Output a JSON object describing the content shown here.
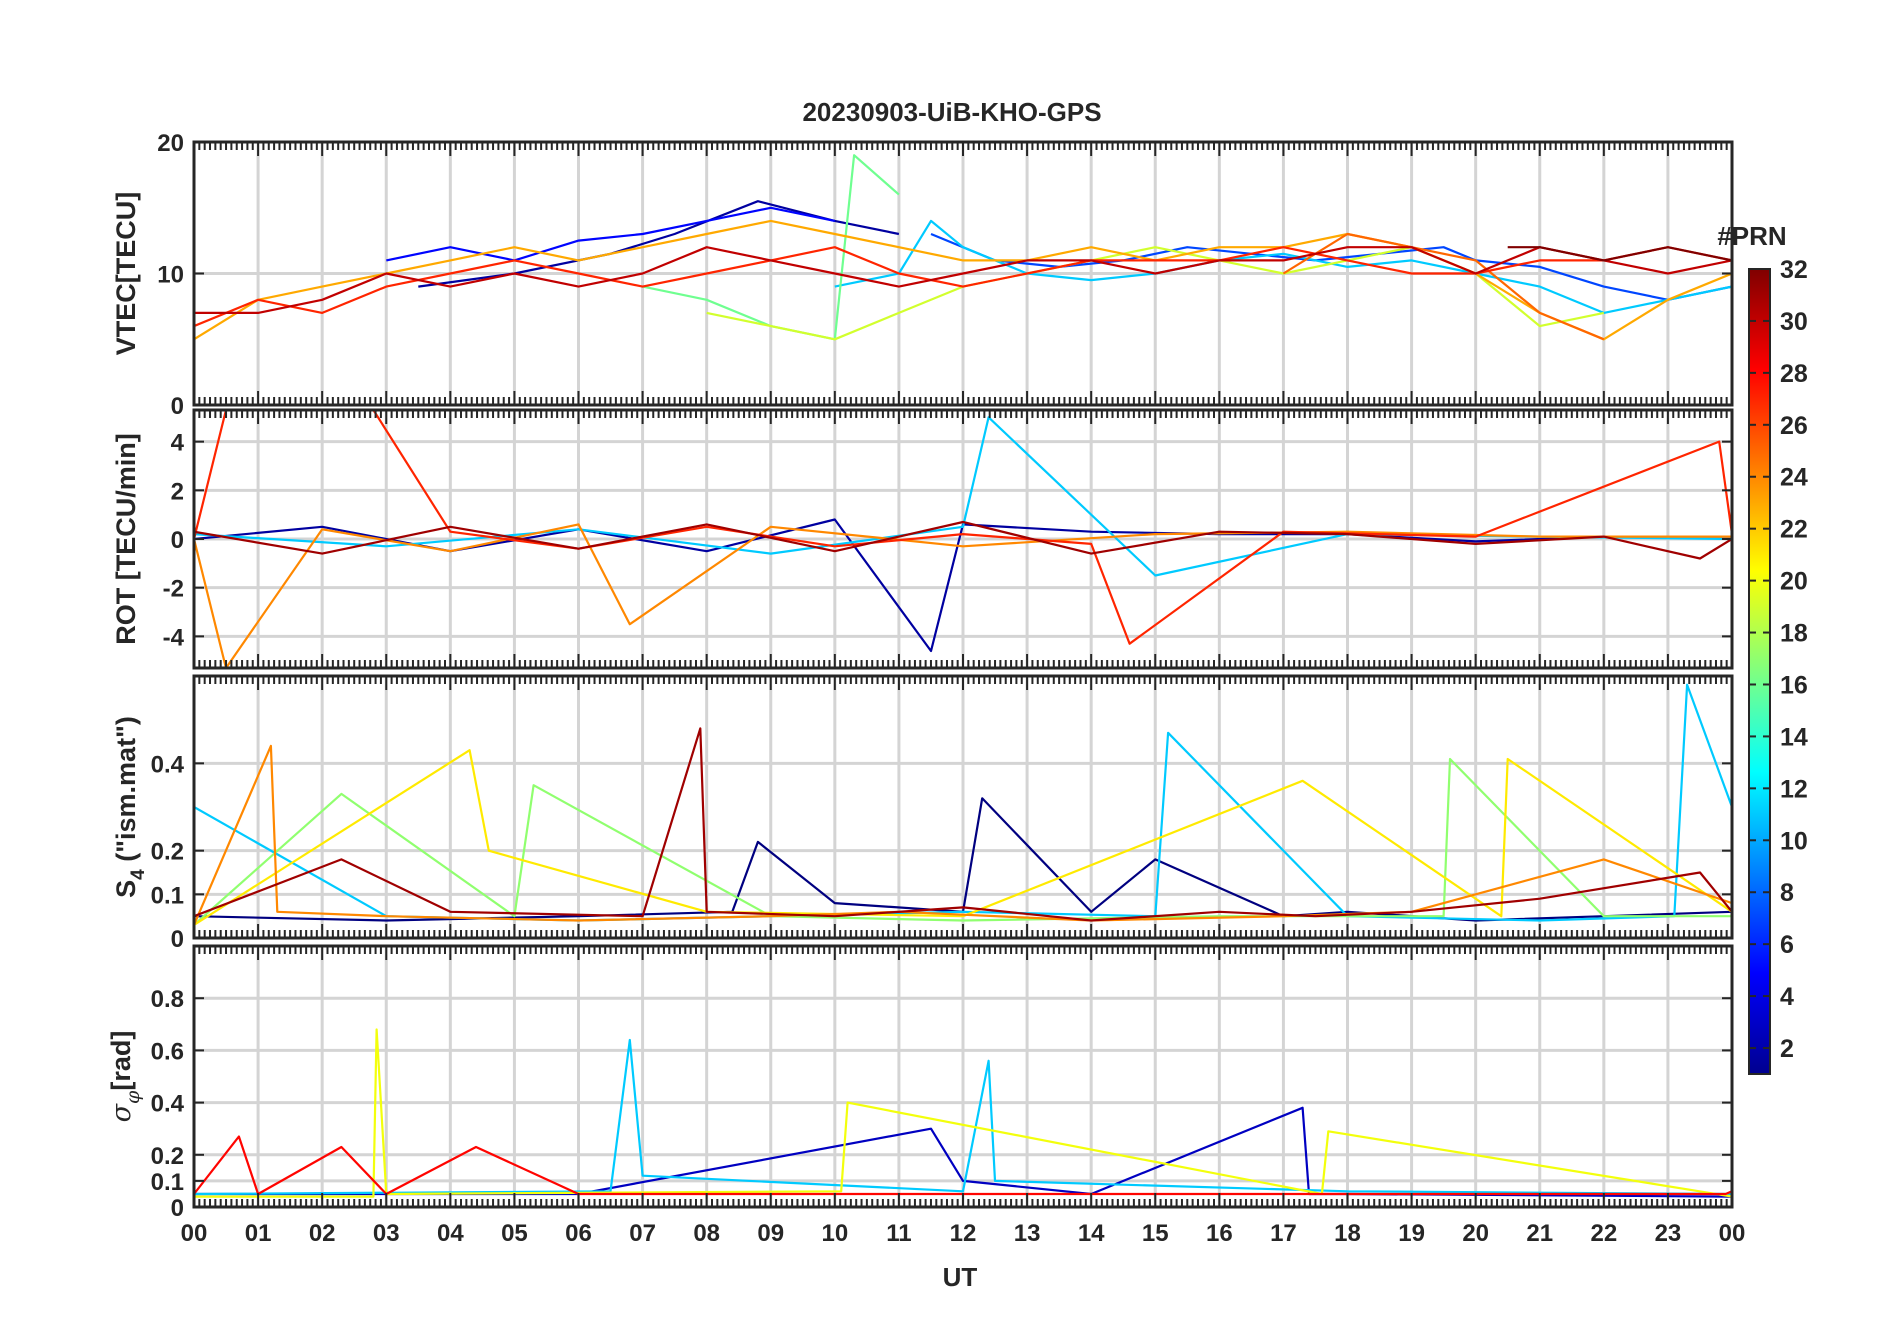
{
  "figure": {
    "title": "20230903-UiB-KHO-GPS",
    "xlabel": "UT",
    "x_tick_labels": [
      "00",
      "01",
      "02",
      "03",
      "04",
      "05",
      "06",
      "07",
      "08",
      "09",
      "10",
      "11",
      "12",
      "13",
      "14",
      "15",
      "16",
      "17",
      "18",
      "19",
      "20",
      "21",
      "22",
      "23",
      "00"
    ]
  },
  "colorbar": {
    "label": "#PRN",
    "range": [
      1,
      32
    ],
    "tick_values": [
      2,
      4,
      6,
      8,
      10,
      12,
      14,
      16,
      18,
      20,
      22,
      24,
      26,
      28,
      30,
      32
    ],
    "tick_labels": [
      "2",
      "4",
      "6",
      "8",
      "10",
      "12",
      "14",
      "16",
      "18",
      "20",
      "22",
      "24",
      "26",
      "28",
      "30",
      "32"
    ],
    "colormap": "jet"
  },
  "chart_data": [
    {
      "type": "line",
      "panel": "vtec",
      "ylabel": "VTEC[TECU]",
      "xlim": [
        0,
        24
      ],
      "ylim": [
        0,
        20
      ],
      "y_tick_values": [
        0,
        10,
        20
      ],
      "y_tick_labels": [
        "0",
        "10",
        "20"
      ],
      "grid": true,
      "series": [
        {
          "prn": 2,
          "x": [
            3.5,
            5,
            6.5,
            7.5,
            8.8,
            10,
            11
          ],
          "values": [
            9,
            10,
            11.5,
            13,
            15.5,
            14,
            13
          ]
        },
        {
          "prn": 5,
          "x": [
            3,
            4,
            5,
            6,
            7,
            8,
            9,
            10
          ],
          "values": [
            11,
            12,
            11,
            12.5,
            13,
            14,
            15,
            14
          ]
        },
        {
          "prn": 7,
          "x": [
            11.5,
            12.5,
            13.5,
            14.5,
            15.5,
            16.5,
            17.5,
            18.5,
            19.5,
            20,
            21,
            22,
            23,
            24
          ],
          "values": [
            13,
            11,
            10.5,
            11,
            12,
            11.5,
            11,
            11.5,
            12,
            11,
            10.5,
            9,
            8,
            9
          ]
        },
        {
          "prn": 11,
          "x": [
            10,
            11,
            11.5,
            12,
            13,
            14,
            15,
            16,
            17,
            18,
            19,
            20,
            21,
            22,
            23,
            24
          ],
          "values": [
            9,
            10,
            14,
            12,
            10,
            9.5,
            10,
            11,
            11.5,
            10.5,
            11,
            10,
            9,
            7,
            8,
            9
          ]
        },
        {
          "prn": 16,
          "x": [
            7,
            8,
            9,
            10,
            10.3,
            11
          ],
          "values": [
            9,
            8,
            6,
            5,
            19,
            16
          ]
        },
        {
          "prn": 19,
          "x": [
            8,
            9,
            10,
            11,
            12,
            13,
            14,
            15,
            16,
            17,
            18,
            19,
            20,
            21,
            22
          ],
          "values": [
            7,
            6,
            5,
            7,
            9,
            10,
            11,
            12,
            11,
            10,
            11,
            12,
            10,
            6,
            7
          ]
        },
        {
          "prn": 23,
          "x": [
            0,
            1,
            2,
            3,
            4,
            5,
            6,
            7,
            8,
            9,
            10,
            11,
            12,
            13,
            14,
            15,
            16,
            17,
            18,
            19,
            20,
            21,
            22,
            23,
            24
          ],
          "values": [
            5,
            8,
            9,
            10,
            11,
            12,
            11,
            12,
            13,
            14,
            13,
            12,
            11,
            11,
            12,
            11,
            12,
            12,
            13,
            12,
            10,
            7,
            5,
            8,
            10
          ]
        },
        {
          "prn": 25,
          "x": [
            17,
            18,
            19,
            20,
            21,
            22
          ],
          "values": [
            10,
            13,
            12,
            11,
            7,
            5
          ]
        },
        {
          "prn": 27,
          "x": [
            0,
            1,
            2,
            3,
            4,
            5,
            6,
            7,
            8,
            9,
            10,
            11,
            12,
            13,
            14,
            15,
            16,
            17,
            18,
            19,
            20,
            21,
            22,
            23,
            24
          ],
          "values": [
            6,
            8,
            7,
            9,
            10,
            11,
            10,
            9,
            10,
            11,
            12,
            10,
            9,
            10,
            11,
            11,
            11,
            12,
            11,
            10,
            10,
            11,
            11,
            12,
            11
          ]
        },
        {
          "prn": 30,
          "x": [
            0,
            1,
            2,
            3,
            4,
            5,
            6,
            7,
            8,
            9,
            10,
            11,
            12,
            13,
            14,
            15,
            16,
            17,
            18,
            19,
            20,
            21,
            22,
            23,
            24
          ],
          "values": [
            7,
            7,
            8,
            10,
            9,
            10,
            9,
            10,
            12,
            11,
            10,
            9,
            10,
            11,
            11,
            10,
            11,
            11,
            12,
            12,
            10,
            12,
            11,
            10,
            11
          ]
        },
        {
          "prn": 32,
          "x": [
            20.5,
            21,
            22,
            23,
            24
          ],
          "values": [
            12,
            12,
            11,
            12,
            11
          ]
        }
      ]
    },
    {
      "type": "line",
      "panel": "rot",
      "ylabel": "ROT [TECU/min]",
      "xlim": [
        0,
        24
      ],
      "ylim": [
        -5.3,
        5.3
      ],
      "y_tick_values": [
        -4,
        -2,
        0,
        2,
        4
      ],
      "y_tick_labels": [
        "-4",
        "-2",
        "0",
        "2",
        "4"
      ],
      "grid": true,
      "series": [
        {
          "prn": 2,
          "x": [
            0,
            2,
            4,
            6,
            8,
            10,
            11.5,
            12,
            14,
            16,
            18,
            20,
            22,
            24
          ],
          "values": [
            0,
            0.5,
            -0.5,
            0.4,
            -0.5,
            0.8,
            -4.6,
            0.6,
            0.3,
            0.2,
            0.2,
            -0.1,
            0.1,
            0.1
          ]
        },
        {
          "prn": 11,
          "x": [
            0,
            3,
            6,
            9,
            12,
            12.4,
            15,
            18,
            21,
            24
          ],
          "values": [
            0.2,
            -0.3,
            0.4,
            -0.6,
            0.5,
            5,
            -1.5,
            0.2,
            0.1,
            0
          ]
        },
        {
          "prn": 24,
          "x": [
            0,
            0.5,
            2,
            4,
            6,
            6.8,
            9,
            12,
            15,
            18,
            21,
            24
          ],
          "values": [
            0,
            -5.3,
            0.4,
            -0.5,
            0.6,
            -3.5,
            0.5,
            -0.3,
            0.2,
            0.3,
            0.1,
            0.1
          ]
        },
        {
          "prn": 27,
          "x": [
            0,
            0.5,
            2.8,
            4,
            6,
            8,
            10,
            12,
            14,
            14.6,
            17,
            20,
            23.8,
            24
          ],
          "values": [
            0,
            5.3,
            5.3,
            0.3,
            -0.4,
            0.5,
            -0.3,
            0.2,
            -0.2,
            -4.3,
            0.3,
            0.1,
            4,
            0.2
          ]
        },
        {
          "prn": 31,
          "x": [
            0,
            2,
            4,
            6,
            8,
            10,
            12,
            14,
            16,
            18,
            20,
            22,
            23.5,
            24
          ],
          "values": [
            0.3,
            -0.6,
            0.5,
            -0.4,
            0.6,
            -0.5,
            0.7,
            -0.6,
            0.3,
            0.2,
            -0.2,
            0.1,
            -0.8,
            0
          ]
        }
      ]
    },
    {
      "type": "line",
      "panel": "s4",
      "ylabel": "S4 (\"ism.mat\")",
      "xlim": [
        0,
        24
      ],
      "ylim": [
        0,
        0.6
      ],
      "y_tick_values": [
        0,
        0.1,
        0.2,
        0.4
      ],
      "y_tick_labels": [
        "0",
        "0.1",
        "0.2",
        "0.4"
      ],
      "grid": true,
      "series": [
        {
          "prn": 1,
          "x": [
            0,
            3,
            6,
            8.4,
            8.8,
            10,
            12,
            12.3,
            14,
            15,
            17,
            18,
            20,
            22,
            24
          ],
          "values": [
            0.05,
            0.04,
            0.05,
            0.06,
            0.22,
            0.08,
            0.06,
            0.32,
            0.06,
            0.18,
            0.05,
            0.06,
            0.04,
            0.05,
            0.06
          ]
        },
        {
          "prn": 11,
          "x": [
            0,
            3,
            6,
            9,
            12,
            15,
            15.2,
            18,
            21,
            23.1,
            23.3,
            24
          ],
          "values": [
            0.3,
            0.05,
            0.04,
            0.05,
            0.06,
            0.05,
            0.47,
            0.05,
            0.04,
            0.05,
            0.58,
            0.3
          ]
        },
        {
          "prn": 17,
          "x": [
            0,
            2.3,
            5,
            5.3,
            9,
            12,
            16,
            17,
            19.5,
            19.6,
            22,
            24
          ],
          "values": [
            0.03,
            0.33,
            0.05,
            0.35,
            0.05,
            0.04,
            0.05,
            0.05,
            0.05,
            0.41,
            0.05,
            0.05
          ]
        },
        {
          "prn": 21,
          "x": [
            0,
            4.3,
            4.6,
            8,
            12,
            17.3,
            20.4,
            20.5,
            24
          ],
          "values": [
            0.03,
            0.43,
            0.2,
            0.06,
            0.05,
            0.36,
            0.05,
            0.41,
            0.06
          ]
        },
        {
          "prn": 24,
          "x": [
            0,
            1.2,
            1.3,
            3,
            6,
            9,
            11,
            14,
            17,
            19,
            22,
            24
          ],
          "values": [
            0.03,
            0.44,
            0.06,
            0.05,
            0.04,
            0.05,
            0.06,
            0.04,
            0.05,
            0.06,
            0.18,
            0.08
          ]
        },
        {
          "prn": 31,
          "x": [
            0,
            2.3,
            4,
            7,
            7.9,
            8,
            10,
            12,
            14,
            16,
            17.5,
            19,
            21,
            23.5,
            24
          ],
          "values": [
            0.05,
            0.18,
            0.06,
            0.05,
            0.48,
            0.06,
            0.05,
            0.07,
            0.04,
            0.06,
            0.05,
            0.06,
            0.09,
            0.15,
            0.06
          ]
        }
      ]
    },
    {
      "type": "line",
      "panel": "sigma_phi",
      "ylabel": "σφ[rad]",
      "xlim": [
        0,
        24
      ],
      "ylim": [
        0,
        1
      ],
      "y_tick_values": [
        0,
        0.1,
        0.2,
        0.4,
        0.6,
        0.8
      ],
      "y_tick_labels": [
        "0",
        "0.1",
        "0.2",
        "0.4",
        "0.6",
        "0.8"
      ],
      "grid": true,
      "series": [
        {
          "prn": 3,
          "x": [
            0,
            6,
            11.5,
            12,
            14,
            17.3,
            17.4,
            18,
            24
          ],
          "values": [
            0.05,
            0.05,
            0.3,
            0.1,
            0.05,
            0.38,
            0.05,
            0.05,
            0.04
          ]
        },
        {
          "prn": 11,
          "x": [
            0,
            6.5,
            6.8,
            7,
            12,
            12.4,
            12.5,
            18,
            24
          ],
          "values": [
            0.05,
            0.06,
            0.64,
            0.12,
            0.06,
            0.56,
            0.1,
            0.06,
            0.05
          ]
        },
        {
          "prn": 20,
          "x": [
            0,
            2.8,
            2.85,
            3,
            10.1,
            10.2,
            17.6,
            17.7,
            24
          ],
          "values": [
            0.04,
            0.04,
            0.68,
            0.05,
            0.06,
            0.4,
            0.05,
            0.29,
            0.04
          ]
        },
        {
          "prn": 28,
          "x": [
            0,
            0.7,
            1,
            2.3,
            3,
            4.4,
            6,
            12,
            23.9,
            24
          ],
          "values": [
            0.05,
            0.27,
            0.05,
            0.23,
            0.05,
            0.23,
            0.05,
            0.05,
            0.05,
            0.06
          ]
        }
      ]
    }
  ]
}
